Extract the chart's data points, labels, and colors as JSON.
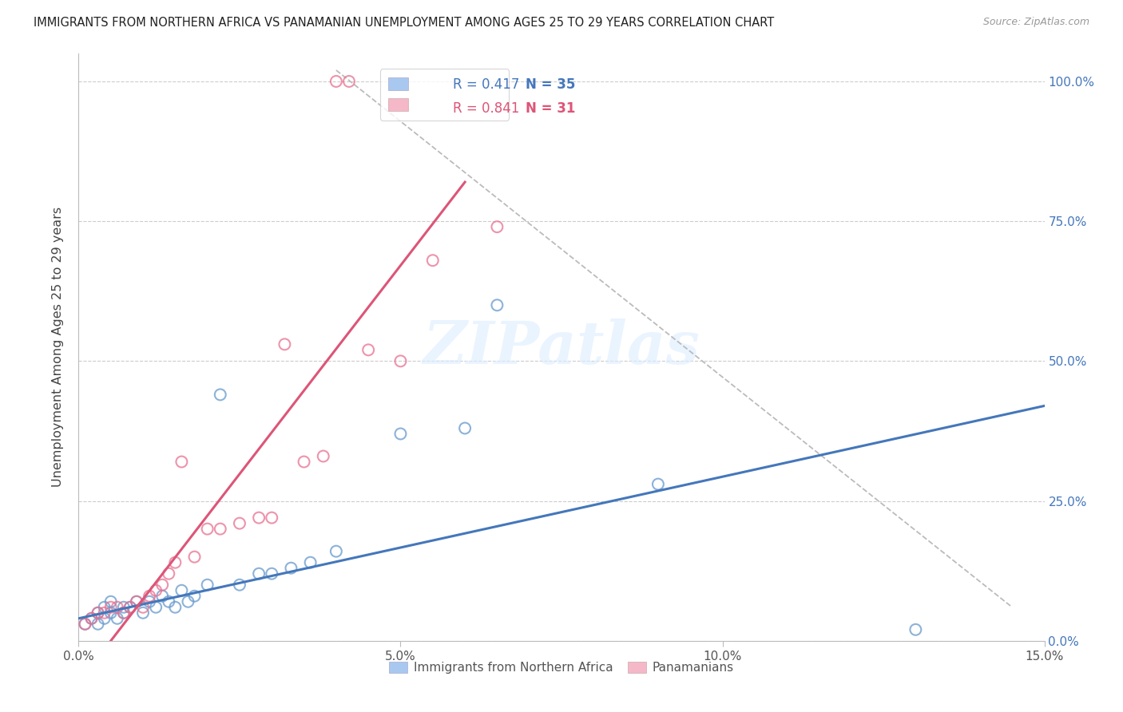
{
  "title": "IMMIGRANTS FROM NORTHERN AFRICA VS PANAMANIAN UNEMPLOYMENT AMONG AGES 25 TO 29 YEARS CORRELATION CHART",
  "source": "Source: ZipAtlas.com",
  "ylabel": "Unemployment Among Ages 25 to 29 years",
  "xlim": [
    0.0,
    0.15
  ],
  "ylim": [
    0.0,
    1.05
  ],
  "yticks": [
    0.0,
    0.25,
    0.5,
    0.75,
    1.0
  ],
  "ytick_labels": [
    "0.0%",
    "25.0%",
    "50.0%",
    "75.0%",
    "100.0%"
  ],
  "xticks": [
    0.0,
    0.05,
    0.1,
    0.15
  ],
  "xtick_labels": [
    "0.0%",
    "5.0%",
    "10.0%",
    "15.0%"
  ],
  "legend1_r": "R = 0.417",
  "legend1_n": "N = 35",
  "legend2_r": "R = 0.841",
  "legend2_n": "N = 31",
  "blue_fill": "#a8c8f0",
  "pink_fill": "#f5b8c8",
  "blue_edge": "#6699cc",
  "pink_edge": "#e87090",
  "line_blue": "#4477bb",
  "line_pink": "#dd5577",
  "diag_color": "#bbbbbb",
  "text_color_blue": "#4477bb",
  "text_color_pink": "#dd5577",
  "watermark": "ZIPatlas",
  "background_color": "#ffffff",
  "grid_color": "#cccccc",
  "blue_scatter_x": [
    0.001,
    0.002,
    0.003,
    0.003,
    0.004,
    0.004,
    0.005,
    0.005,
    0.006,
    0.007,
    0.007,
    0.008,
    0.009,
    0.01,
    0.011,
    0.012,
    0.013,
    0.014,
    0.015,
    0.016,
    0.017,
    0.018,
    0.02,
    0.022,
    0.025,
    0.028,
    0.03,
    0.033,
    0.036,
    0.04,
    0.05,
    0.06,
    0.065,
    0.09,
    0.13
  ],
  "blue_scatter_y": [
    0.03,
    0.04,
    0.03,
    0.05,
    0.04,
    0.06,
    0.05,
    0.07,
    0.04,
    0.06,
    0.05,
    0.06,
    0.07,
    0.05,
    0.07,
    0.06,
    0.08,
    0.07,
    0.06,
    0.09,
    0.07,
    0.08,
    0.1,
    0.44,
    0.1,
    0.12,
    0.12,
    0.13,
    0.14,
    0.16,
    0.37,
    0.38,
    0.6,
    0.28,
    0.02
  ],
  "pink_scatter_x": [
    0.001,
    0.002,
    0.003,
    0.004,
    0.005,
    0.006,
    0.007,
    0.008,
    0.009,
    0.01,
    0.011,
    0.012,
    0.013,
    0.014,
    0.015,
    0.016,
    0.018,
    0.02,
    0.022,
    0.025,
    0.028,
    0.03,
    0.032,
    0.035,
    0.038,
    0.04,
    0.042,
    0.045,
    0.05,
    0.055,
    0.065
  ],
  "pink_scatter_y": [
    0.03,
    0.04,
    0.05,
    0.05,
    0.06,
    0.06,
    0.05,
    0.06,
    0.07,
    0.06,
    0.08,
    0.09,
    0.1,
    0.12,
    0.14,
    0.32,
    0.15,
    0.2,
    0.2,
    0.21,
    0.22,
    0.22,
    0.53,
    0.32,
    0.33,
    1.0,
    1.0,
    0.52,
    0.5,
    0.68,
    0.74
  ],
  "blue_line": {
    "x0": 0.0,
    "y0": 0.04,
    "x1": 0.15,
    "y1": 0.42
  },
  "pink_line": {
    "x0": 0.005,
    "y0": 0.0,
    "x1": 0.06,
    "y1": 0.82
  },
  "diag_line": {
    "x0": 0.04,
    "y0": 1.02,
    "x1": 0.145,
    "y1": 0.06
  },
  "bottom_labels": [
    "Immigrants from Northern Africa",
    "Panamanians"
  ]
}
